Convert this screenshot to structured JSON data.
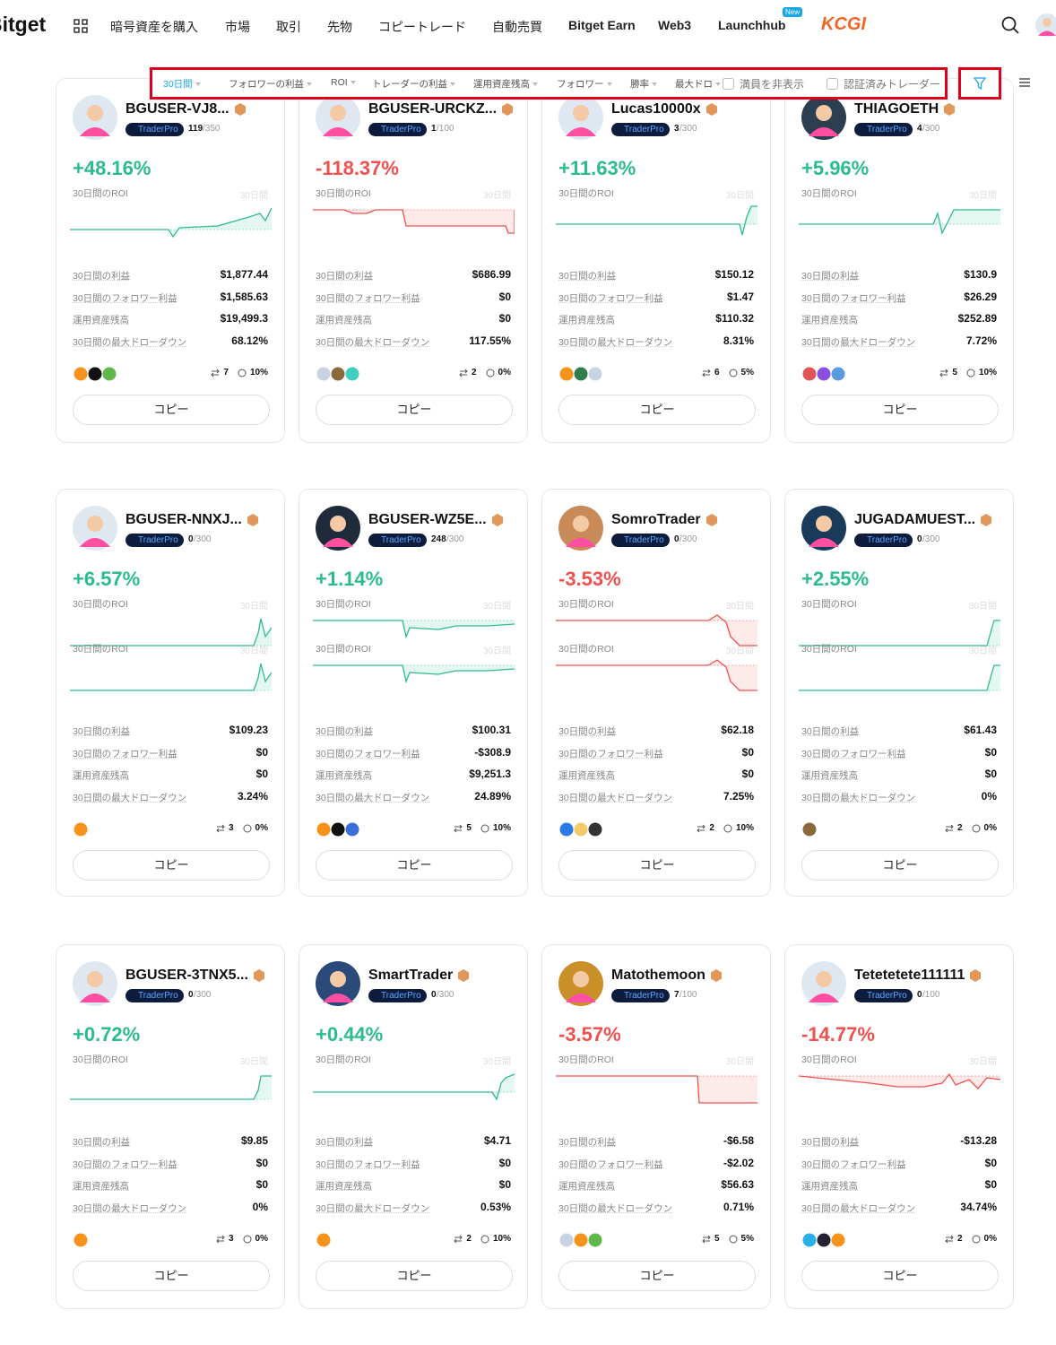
{
  "header": {
    "logo": "Bitget",
    "nav": [
      "暗号資産を購入",
      "市場",
      "取引",
      "先物",
      "コピートレード",
      "自動売買",
      "Bitget Earn",
      "Web3",
      "Launchhub"
    ],
    "new_badge": "New",
    "brand": "KCGI"
  },
  "filters": {
    "sorts": [
      "30日間",
      "フォロワーの利益",
      "ROI",
      "トレーダーの利益",
      "運用資産残高",
      "フォロワー",
      "勝率",
      "最大ドロ"
    ],
    "checkboxes": [
      "満員を非表示",
      "認証済みトレーダー"
    ]
  },
  "card_labels": {
    "badge": "TraderPro",
    "roi_label": "30日間のROI",
    "period": "30日間",
    "stats": [
      "30日間の利益",
      "30日間のフォロワー利益",
      "運用資産残高",
      "30日間の最大ドローダウン"
    ],
    "copy": "コピー"
  },
  "cards": [
    {
      "name": "BGUSER-VJ8...",
      "followers": "119",
      "capacity": "/350",
      "roi": "+48.16%",
      "stats": [
        "$1,877.44",
        "$1,585.63",
        "$19,499.3",
        "68.12%"
      ],
      "trades": "7",
      "share": "10%"
    },
    {
      "name": "BGUSER-URCKZ...",
      "followers": "1",
      "capacity": "/100",
      "roi": "-118.37%",
      "stats": [
        "$686.99",
        "$0",
        "$0",
        "117.55%"
      ],
      "trades": "2",
      "share": "0%"
    },
    {
      "name": "Lucas10000x",
      "followers": "3",
      "capacity": "/300",
      "roi": "+11.63%",
      "stats": [
        "$150.12",
        "$1.47",
        "$110.32",
        "8.31%"
      ],
      "trades": "6",
      "share": "5%"
    },
    {
      "name": "THIAGOETH",
      "followers": "4",
      "capacity": "/300",
      "roi": "+5.96%",
      "stats": [
        "$130.9",
        "$26.29",
        "$252.89",
        "7.72%"
      ],
      "trades": "5",
      "share": "10%"
    },
    {
      "name": "BGUSER-NNXJ...",
      "followers": "0",
      "capacity": "/300",
      "roi": "+6.57%",
      "stats": [
        "$109.23",
        "$0",
        "$0",
        "3.24%"
      ],
      "trades": "3",
      "share": "0%"
    },
    {
      "name": "BGUSER-WZ5E...",
      "followers": "248",
      "capacity": "/300",
      "roi": "+1.14%",
      "stats": [
        "$100.31",
        "-$308.9",
        "$9,251.3",
        "24.89%"
      ],
      "trades": "5",
      "share": "10%"
    },
    {
      "name": "SomroTrader",
      "followers": "0",
      "capacity": "/300",
      "roi": "-3.53%",
      "stats": [
        "$62.18",
        "$0",
        "$0",
        "7.25%"
      ],
      "trades": "2",
      "share": "10%"
    },
    {
      "name": "JUGADAMUEST...",
      "followers": "0",
      "capacity": "/300",
      "roi": "+2.55%",
      "stats": [
        "$61.43",
        "$0",
        "$0",
        "0%"
      ],
      "trades": "2",
      "share": "0%"
    },
    {
      "name": "BGUSER-3TNX5...",
      "followers": "0",
      "capacity": "/300",
      "roi": "+0.72%",
      "stats": [
        "$9.85",
        "$0",
        "$0",
        "0%"
      ],
      "trades": "3",
      "share": "0%"
    },
    {
      "name": "SmartTrader",
      "followers": "0",
      "capacity": "/300",
      "roi": "+0.44%",
      "stats": [
        "$4.71",
        "$0",
        "$0",
        "0.53%"
      ],
      "trades": "2",
      "share": "10%"
    },
    {
      "name": "Matothemoon",
      "followers": "7",
      "capacity": "/100",
      "roi": "-3.57%",
      "stats": [
        "-$6.58",
        "-$2.02",
        "$56.63",
        "0.71%"
      ],
      "trades": "5",
      "share": "5%"
    },
    {
      "name": "Tetetetete111111",
      "followers": "0",
      "capacity": "/100",
      "roi": "-14.77%",
      "stats": [
        "-$13.28",
        "$0",
        "$0",
        "34.74%"
      ],
      "trades": "2",
      "share": "0%"
    }
  ]
}
